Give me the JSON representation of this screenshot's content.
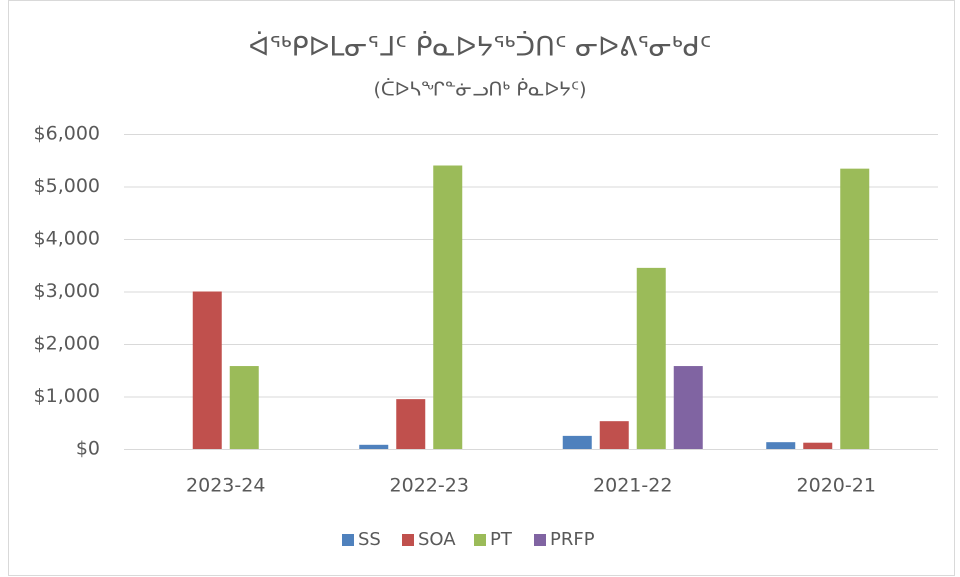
{
  "chart_data": {
    "type": "bar",
    "title": "ᐋᖅᑭᐅᒪᓂᕐᒧᑦ ᑮᓇᐅᔭᖅᑑᑎᑦ ᓂᐅᕕᕐᓂᒃᑯᑦ",
    "subtitle": "(ᑖᐅᓴᖏᓐᓃᓗᑎᒃ ᑮᓇᐅᔭᑦ)",
    "categories": [
      "2023-24",
      "2022-23",
      "2021-22",
      "2020-21"
    ],
    "series": [
      {
        "name": "SS",
        "color": "#4f81bd",
        "values": [
          0,
          80,
          250,
          130
        ]
      },
      {
        "name": "SOA",
        "color": "#c0504d",
        "values": [
          3000,
          950,
          530,
          120
        ]
      },
      {
        "name": "PT",
        "color": "#9bbb59",
        "values": [
          1580,
          5400,
          3450,
          5340
        ]
      },
      {
        "name": "PRFP",
        "color": "#8064a2",
        "values": [
          0,
          0,
          1580,
          0
        ]
      }
    ],
    "ylim": [
      0,
      6000
    ],
    "yticks": [
      {
        "value": 0,
        "label": "$0"
      },
      {
        "value": 1000,
        "label": "$1,000"
      },
      {
        "value": 2000,
        "label": "$2,000"
      },
      {
        "value": 3000,
        "label": "$3,000"
      },
      {
        "value": 4000,
        "label": "$4,000"
      },
      {
        "value": 5000,
        "label": "$5,000"
      },
      {
        "value": 6000,
        "label": "$6,000"
      }
    ],
    "grid": true,
    "legend": "bottom"
  }
}
